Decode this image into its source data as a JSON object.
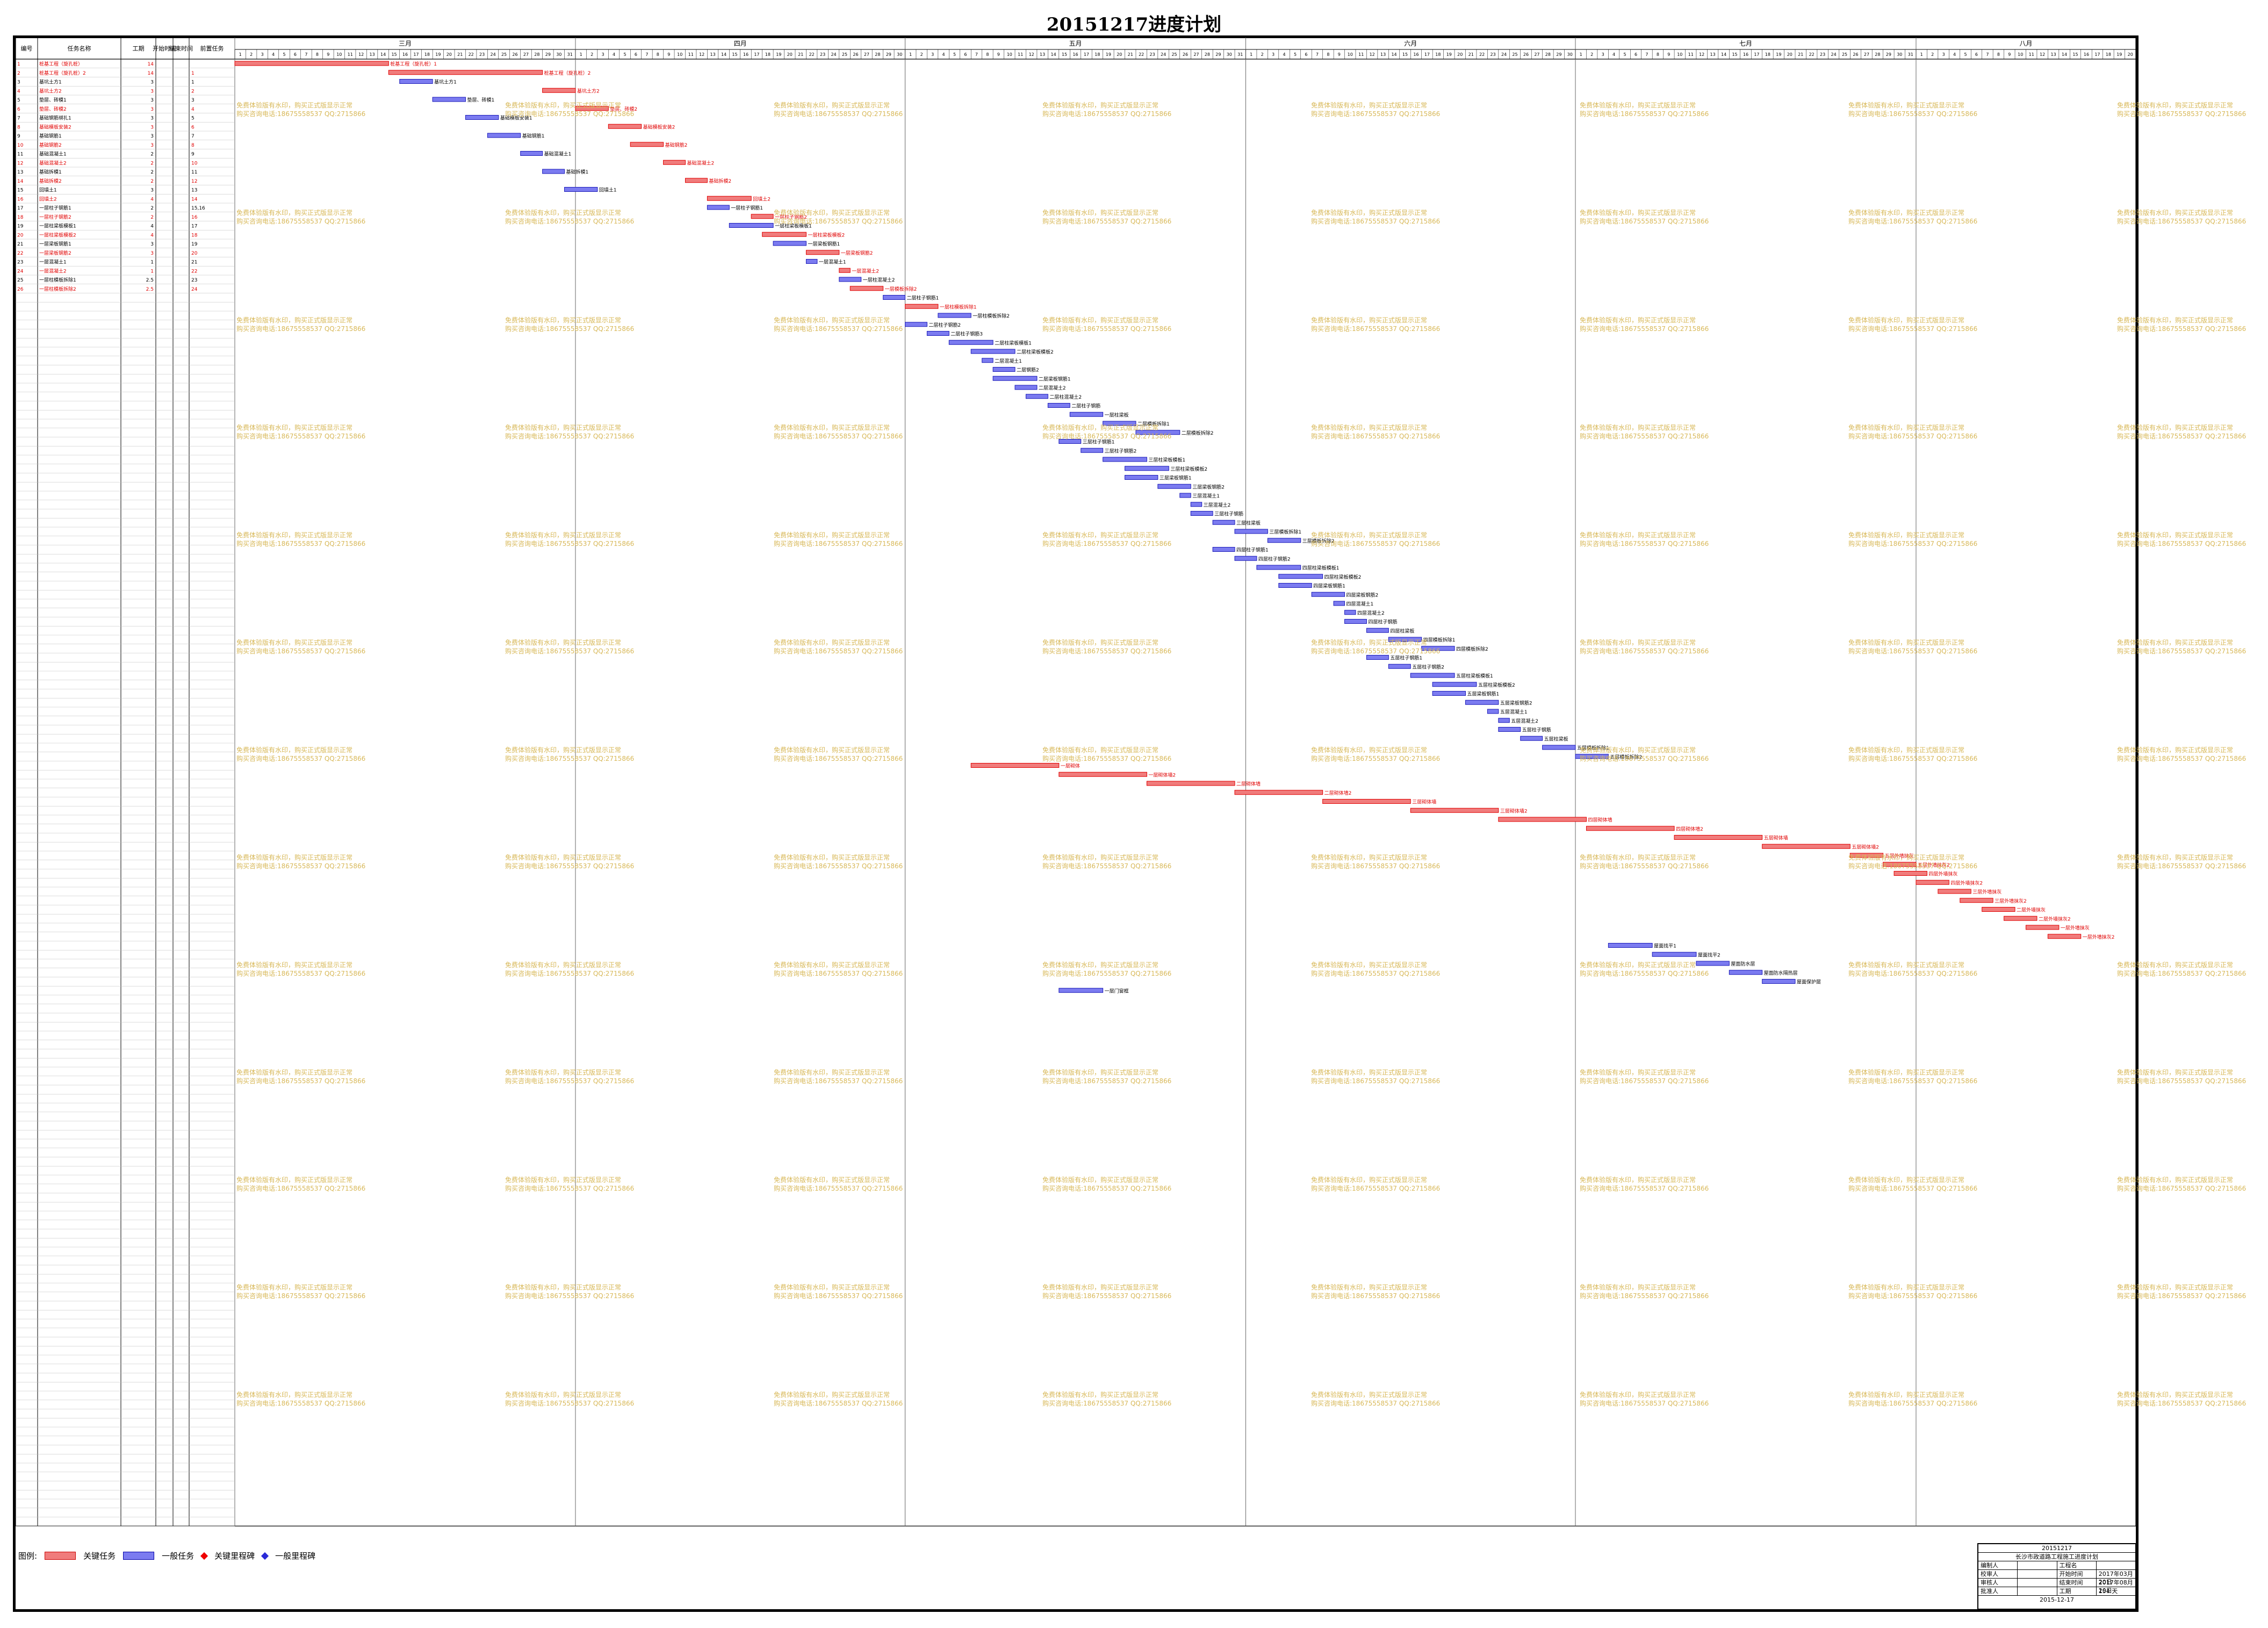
{
  "page_title": "20151217进度计划",
  "colors": {
    "critical": "#f07c7c",
    "critical_stroke": "#e00000",
    "normal": "#7b7bf0",
    "normal_stroke": "#1a1ab8",
    "watermark": "#d8b858"
  },
  "table_headers": [
    "编号",
    "任务名称",
    "工期",
    "开始时间",
    "结束时间",
    "前置任务"
  ],
  "months": [
    {
      "label": "三月",
      "days": 31
    },
    {
      "label": "四月",
      "days": 30
    },
    {
      "label": "五月",
      "days": 31
    },
    {
      "label": "六月",
      "days": 30
    },
    {
      "label": "七月",
      "days": 31
    },
    {
      "label": "八月",
      "days": 20
    }
  ],
  "watermark_lines": [
    "免费体验版有水印，购买正式版显示正常",
    "购买咨询电话:18675558537 QQ:2715866"
  ],
  "legend": {
    "label": "图例:",
    "items": [
      "关键任务",
      "一般任务",
      "关键里程碑",
      "一般里程碑"
    ]
  },
  "info_box": {
    "header1": "20151217",
    "header2": "长沙市政道路工程施工进度计划",
    "rows": [
      [
        "编制人",
        "",
        "工程名",
        ""
      ],
      [
        "校审人",
        "",
        "开始时间",
        "2017年03月20日"
      ],
      [
        "审核人",
        "",
        "结束时间",
        "2017年08月20日"
      ],
      [
        "批准人",
        "",
        "工期",
        "154 天"
      ]
    ],
    "footer": "2015-12-17"
  },
  "tasks": [
    {
      "id": "1",
      "name": "桩基工程（旋孔桩）",
      "dur": "14",
      "pred": "",
      "crit": true
    },
    {
      "id": "2",
      "name": "桩基工程（旋孔桩）2",
      "dur": "14",
      "pred": "1",
      "crit": true
    },
    {
      "id": "3",
      "name": "基坑土方1",
      "dur": "3",
      "pred": "1",
      "crit": false
    },
    {
      "id": "4",
      "name": "基坑土方2",
      "dur": "3",
      "pred": "2",
      "crit": true
    },
    {
      "id": "5",
      "name": "垫层、砖模1",
      "dur": "3",
      "pred": "3",
      "crit": false
    },
    {
      "id": "6",
      "name": "垫层、砖模2",
      "dur": "3",
      "pred": "4",
      "crit": true
    },
    {
      "id": "7",
      "name": "基础钢筋绑扎1",
      "dur": "3",
      "pred": "5",
      "crit": false
    },
    {
      "id": "8",
      "name": "基础模板安装2",
      "dur": "3",
      "pred": "6",
      "crit": true
    },
    {
      "id": "9",
      "name": "基础钢筋1",
      "dur": "3",
      "pred": "7",
      "crit": false
    },
    {
      "id": "10",
      "name": "基础钢筋2",
      "dur": "3",
      "pred": "8",
      "crit": true
    },
    {
      "id": "11",
      "name": "基础混凝土1",
      "dur": "2",
      "pred": "9",
      "crit": false
    },
    {
      "id": "12",
      "name": "基础混凝土2",
      "dur": "2",
      "pred": "10",
      "crit": true
    },
    {
      "id": "13",
      "name": "基础拆模1",
      "dur": "2",
      "pred": "11",
      "crit": false
    },
    {
      "id": "14",
      "name": "基础拆模2",
      "dur": "2",
      "pred": "12",
      "crit": true
    },
    {
      "id": "15",
      "name": "回填土1",
      "dur": "3",
      "pred": "13",
      "crit": false
    },
    {
      "id": "16",
      "name": "回填土2",
      "dur": "4",
      "pred": "14",
      "crit": true
    },
    {
      "id": "17",
      "name": "一层柱子钢筋1",
      "dur": "2",
      "pred": "15,16",
      "crit": false
    },
    {
      "id": "18",
      "name": "一层柱子钢筋2",
      "dur": "2",
      "pred": "16",
      "crit": true
    },
    {
      "id": "19",
      "name": "一层柱梁板模板1",
      "dur": "4",
      "pred": "17",
      "crit": false
    },
    {
      "id": "20",
      "name": "一层柱梁板模板2",
      "dur": "4",
      "pred": "18",
      "crit": true
    },
    {
      "id": "21",
      "name": "一层梁板钢筋1",
      "dur": "3",
      "pred": "19",
      "crit": false
    },
    {
      "id": "22",
      "name": "一层梁板钢筋2",
      "dur": "3",
      "pred": "20",
      "crit": true
    },
    {
      "id": "23",
      "name": "一层混凝土1",
      "dur": "1",
      "pred": "21",
      "crit": false
    },
    {
      "id": "24",
      "name": "一层混凝土2",
      "dur": "1",
      "pred": "22",
      "crit": true
    },
    {
      "id": "25",
      "name": "一层柱模板拆除1",
      "dur": "2.5",
      "pred": "23",
      "crit": false
    },
    {
      "id": "26",
      "name": "一层柱模板拆除2",
      "dur": "2.5",
      "pred": "24",
      "crit": true
    }
  ],
  "chart_data": {
    "type": "gantt",
    "title": "20151217进度计划",
    "x_unit": "day index from 三月 1日",
    "x_range": [
      1,
      173
    ],
    "row_count": 163,
    "bars": [
      {
        "row": 1,
        "start": 1,
        "end": 15,
        "label": "桩基工程（旋孔桩）1",
        "crit": true
      },
      {
        "row": 2,
        "start": 15,
        "end": 29,
        "label": "桩基工程（旋孔桩）2",
        "crit": true
      },
      {
        "row": 3,
        "start": 16,
        "end": 19,
        "label": "基坑土方1",
        "crit": false
      },
      {
        "row": 4,
        "start": 29,
        "end": 32,
        "label": "基坑土方2",
        "crit": true
      },
      {
        "row": 5,
        "start": 19,
        "end": 22,
        "label": "垫层、砖模1",
        "crit": false
      },
      {
        "row": 6,
        "start": 32,
        "end": 35,
        "label": "垫层、砖模2",
        "crit": true
      },
      {
        "row": 7,
        "start": 22,
        "end": 25,
        "label": "基础模板安装1",
        "crit": false
      },
      {
        "row": 8,
        "start": 35,
        "end": 38,
        "label": "基础模板安装2",
        "crit": true
      },
      {
        "row": 9,
        "start": 24,
        "end": 27,
        "label": "基础钢筋1",
        "crit": false
      },
      {
        "row": 10,
        "start": 37,
        "end": 40,
        "label": "基础钢筋2",
        "crit": true
      },
      {
        "row": 11,
        "start": 27,
        "end": 29,
        "label": "基础混凝土1",
        "crit": false
      },
      {
        "row": 12,
        "start": 40,
        "end": 42,
        "label": "基础混凝土2",
        "crit": true
      },
      {
        "row": 13,
        "start": 29,
        "end": 31,
        "label": "基础拆模1",
        "crit": false
      },
      {
        "row": 14,
        "start": 42,
        "end": 44,
        "label": "基础拆模2",
        "crit": true
      },
      {
        "row": 15,
        "start": 31,
        "end": 34,
        "label": "回填土1",
        "crit": false
      },
      {
        "row": 16,
        "start": 44,
        "end": 48,
        "label": "回填土2",
        "crit": true
      },
      {
        "row": 17,
        "start": 44,
        "end": 46,
        "label": "一层柱子钢筋1",
        "crit": false
      },
      {
        "row": 18,
        "start": 48,
        "end": 50,
        "label": "一层柱子钢筋2",
        "crit": true
      },
      {
        "row": 19,
        "start": 46,
        "end": 50,
        "label": "一层柱梁板模板1",
        "crit": false
      },
      {
        "row": 20,
        "start": 49,
        "end": 53,
        "label": "一层柱梁板模板2",
        "crit": true
      },
      {
        "row": 21,
        "start": 50,
        "end": 53,
        "label": "一层梁板钢筋1",
        "crit": false
      },
      {
        "row": 22,
        "start": 53,
        "end": 56,
        "label": "一层梁板钢筋2",
        "crit": true
      },
      {
        "row": 23,
        "start": 53,
        "end": 54,
        "label": "一层混凝土1",
        "crit": false
      },
      {
        "row": 24,
        "start": 56,
        "end": 57,
        "label": "一层混凝土2",
        "crit": true
      },
      {
        "row": 25,
        "start": 56,
        "end": 58,
        "label": "一层柱混凝土2",
        "crit": false
      },
      {
        "row": 26,
        "start": 57,
        "end": 60,
        "label": "一层模板拆除2",
        "crit": true
      },
      {
        "row": 27,
        "start": 60,
        "end": 62,
        "label": "二层柱子钢筋1",
        "crit": false
      },
      {
        "row": 28,
        "start": 62,
        "end": 65,
        "label": "一层柱模板拆除1",
        "crit": true
      },
      {
        "row": 29,
        "start": 65,
        "end": 68,
        "label": "一层柱模板拆除2",
        "crit": false
      },
      {
        "row": 30,
        "start": 62,
        "end": 64,
        "label": "二层柱子钢筋2",
        "crit": false
      },
      {
        "row": 31,
        "start": 64,
        "end": 66,
        "label": "二层柱子钢筋3",
        "crit": false
      },
      {
        "row": 32,
        "start": 66,
        "end": 70,
        "label": "二层柱梁板模板1",
        "crit": false
      },
      {
        "row": 33,
        "start": 68,
        "end": 72,
        "label": "二层柱梁板模板2",
        "crit": false
      },
      {
        "row": 34,
        "start": 69,
        "end": 70,
        "label": "二层混凝土1",
        "crit": false
      },
      {
        "row": 35,
        "start": 70,
        "end": 72,
        "label": "二层钢筋2",
        "crit": false
      },
      {
        "row": 36,
        "start": 70,
        "end": 74,
        "label": "二层梁板钢筋1",
        "crit": false
      },
      {
        "row": 37,
        "start": 72,
        "end": 74,
        "label": "二层混凝土2",
        "crit": false
      },
      {
        "row": 38,
        "start": 73,
        "end": 75,
        "label": "二层柱混凝土2",
        "crit": false
      },
      {
        "row": 39,
        "start": 75,
        "end": 77,
        "label": "二层柱子钢筋",
        "crit": false
      },
      {
        "row": 40,
        "start": 77,
        "end": 80,
        "label": "一层柱梁板",
        "crit": false
      },
      {
        "row": 41,
        "start": 80,
        "end": 83,
        "label": "二层模板拆除1",
        "crit": false
      },
      {
        "row": 42,
        "start": 83,
        "end": 87,
        "label": "二层模板拆除2",
        "crit": false
      },
      {
        "row": 43,
        "start": 76,
        "end": 78,
        "label": "三层柱子钢筋1",
        "crit": false
      },
      {
        "row": 44,
        "start": 78,
        "end": 80,
        "label": "三层柱子钢筋2",
        "crit": false
      },
      {
        "row": 45,
        "start": 80,
        "end": 84,
        "label": "三层柱梁板模板1",
        "crit": false
      },
      {
        "row": 46,
        "start": 82,
        "end": 86,
        "label": "三层柱梁板模板2",
        "crit": false
      },
      {
        "row": 47,
        "start": 82,
        "end": 85,
        "label": "三层梁板钢筋1",
        "crit": false
      },
      {
        "row": 48,
        "start": 85,
        "end": 88,
        "label": "三层梁板钢筋2",
        "crit": false
      },
      {
        "row": 49,
        "start": 87,
        "end": 88,
        "label": "三层混凝土1",
        "crit": false
      },
      {
        "row": 50,
        "start": 88,
        "end": 89,
        "label": "三层混凝土2",
        "crit": false
      },
      {
        "row": 51,
        "start": 88,
        "end": 90,
        "label": "三层柱子钢筋",
        "crit": false
      },
      {
        "row": 52,
        "start": 90,
        "end": 92,
        "label": "三层柱梁板",
        "crit": false
      },
      {
        "row": 53,
        "start": 92,
        "end": 95,
        "label": "三层模板拆除1",
        "crit": false
      },
      {
        "row": 54,
        "start": 95,
        "end": 98,
        "label": "三层模板拆除2",
        "crit": false
      },
      {
        "row": 55,
        "start": 90,
        "end": 92,
        "label": "四层柱子钢筋1",
        "crit": false
      },
      {
        "row": 56,
        "start": 92,
        "end": 94,
        "label": "四层柱子钢筋2",
        "crit": false
      },
      {
        "row": 57,
        "start": 94,
        "end": 98,
        "label": "四层柱梁板模板1",
        "crit": false
      },
      {
        "row": 58,
        "start": 96,
        "end": 100,
        "label": "四层柱梁板模板2",
        "crit": false
      },
      {
        "row": 59,
        "start": 96,
        "end": 99,
        "label": "四层梁板钢筋1",
        "crit": false
      },
      {
        "row": 60,
        "start": 99,
        "end": 102,
        "label": "四层梁板钢筋2",
        "crit": false
      },
      {
        "row": 61,
        "start": 101,
        "end": 102,
        "label": "四层混凝土1",
        "crit": false
      },
      {
        "row": 62,
        "start": 102,
        "end": 103,
        "label": "四层混凝土2",
        "crit": false
      },
      {
        "row": 63,
        "start": 102,
        "end": 104,
        "label": "四层柱子钢筋",
        "crit": false
      },
      {
        "row": 64,
        "start": 104,
        "end": 106,
        "label": "四层柱梁板",
        "crit": false
      },
      {
        "row": 65,
        "start": 106,
        "end": 109,
        "label": "四层模板拆除1",
        "crit": false
      },
      {
        "row": 66,
        "start": 109,
        "end": 112,
        "label": "四层模板拆除2",
        "crit": false
      },
      {
        "row": 67,
        "start": 104,
        "end": 106,
        "label": "五层柱子钢筋1",
        "crit": false
      },
      {
        "row": 68,
        "start": 106,
        "end": 108,
        "label": "五层柱子钢筋2",
        "crit": false
      },
      {
        "row": 69,
        "start": 108,
        "end": 112,
        "label": "五层柱梁板模板1",
        "crit": false
      },
      {
        "row": 70,
        "start": 110,
        "end": 114,
        "label": "五层柱梁板模板2",
        "crit": false
      },
      {
        "row": 71,
        "start": 110,
        "end": 113,
        "label": "五层梁板钢筋1",
        "crit": false
      },
      {
        "row": 72,
        "start": 113,
        "end": 116,
        "label": "五层梁板钢筋2",
        "crit": false
      },
      {
        "row": 73,
        "start": 115,
        "end": 116,
        "label": "五层混凝土1",
        "crit": false
      },
      {
        "row": 74,
        "start": 116,
        "end": 117,
        "label": "五层混凝土2",
        "crit": false
      },
      {
        "row": 75,
        "start": 116,
        "end": 118,
        "label": "五层柱子钢筋",
        "crit": false
      },
      {
        "row": 76,
        "start": 118,
        "end": 120,
        "label": "五层柱梁板",
        "crit": false
      },
      {
        "row": 77,
        "start": 120,
        "end": 123,
        "label": "五层模板拆除1",
        "crit": false
      },
      {
        "row": 78,
        "start": 123,
        "end": 126,
        "label": "五层模板拆除2",
        "crit": false
      },
      {
        "row": 79,
        "start": 68,
        "end": 76,
        "label": "一层砌体",
        "crit": true
      },
      {
        "row": 80,
        "start": 76,
        "end": 84,
        "label": "一层砌体墙2",
        "crit": true
      },
      {
        "row": 81,
        "start": 84,
        "end": 92,
        "label": "二层砌体墙",
        "crit": true
      },
      {
        "row": 82,
        "start": 92,
        "end": 100,
        "label": "二层砌体墙2",
        "crit": true
      },
      {
        "row": 83,
        "start": 100,
        "end": 108,
        "label": "三层砌体墙",
        "crit": true
      },
      {
        "row": 84,
        "start": 108,
        "end": 116,
        "label": "三层砌体墙2",
        "crit": true
      },
      {
        "row": 85,
        "start": 116,
        "end": 124,
        "label": "四层砌体墙",
        "crit": true
      },
      {
        "row": 86,
        "start": 124,
        "end": 132,
        "label": "四层砌体墙2",
        "crit": true
      },
      {
        "row": 87,
        "start": 132,
        "end": 140,
        "label": "五层砌体墙",
        "crit": true
      },
      {
        "row": 88,
        "start": 140,
        "end": 148,
        "label": "五层砌体墙2",
        "crit": true
      },
      {
        "row": 89,
        "start": 148,
        "end": 151,
        "label": "五层外墙抹灰",
        "crit": true
      },
      {
        "row": 90,
        "start": 151,
        "end": 154,
        "label": "五层外墙抹灰2",
        "crit": true
      },
      {
        "row": 91,
        "start": 152,
        "end": 155,
        "label": "四层外墙抹灰",
        "crit": true
      },
      {
        "row": 92,
        "start": 154,
        "end": 157,
        "label": "四层外墙抹灰2",
        "crit": true
      },
      {
        "row": 93,
        "start": 156,
        "end": 159,
        "label": "三层外墙抹灰",
        "crit": true
      },
      {
        "row": 94,
        "start": 158,
        "end": 161,
        "label": "三层外墙抹灰2",
        "crit": true
      },
      {
        "row": 95,
        "start": 160,
        "end": 163,
        "label": "二层外墙抹灰",
        "crit": true
      },
      {
        "row": 96,
        "start": 162,
        "end": 165,
        "label": "二层外墙抹灰2",
        "crit": true
      },
      {
        "row": 97,
        "start": 164,
        "end": 167,
        "label": "一层外墙抹灰",
        "crit": true
      },
      {
        "row": 98,
        "start": 166,
        "end": 169,
        "label": "一层外墙抹灰2",
        "crit": true
      },
      {
        "row": 99,
        "start": 126,
        "end": 130,
        "label": "屋面找平1",
        "crit": false
      },
      {
        "row": 100,
        "start": 130,
        "end": 134,
        "label": "屋面找平2",
        "crit": false
      },
      {
        "row": 101,
        "start": 134,
        "end": 137,
        "label": "屋面防水层",
        "crit": false
      },
      {
        "row": 102,
        "start": 137,
        "end": 140,
        "label": "屋面防水隔热层",
        "crit": false
      },
      {
        "row": 103,
        "start": 140,
        "end": 143,
        "label": "屋面保护层",
        "crit": false
      },
      {
        "row": 104,
        "start": 76,
        "end": 80,
        "label": "一层门窗框",
        "crit": false
      }
    ]
  }
}
